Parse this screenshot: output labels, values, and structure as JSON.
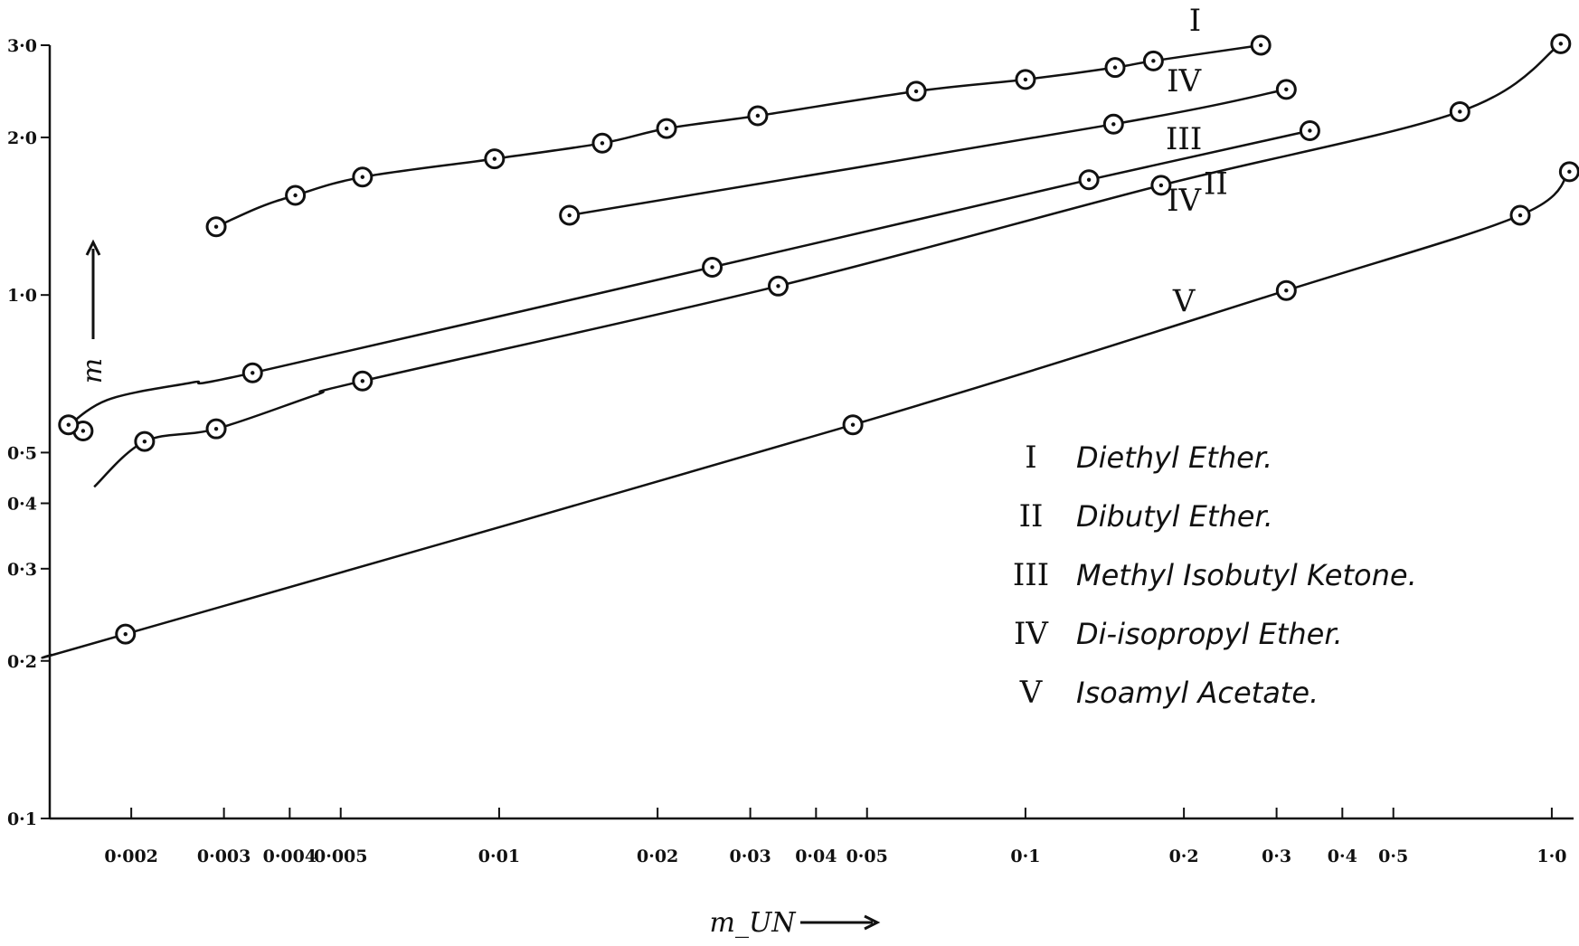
{
  "chart_data": {
    "type": "line",
    "x_scale": "log",
    "y_scale": "log",
    "xlim": [
      0.0014,
      1.1
    ],
    "ylim": [
      0.1,
      3.0
    ],
    "xlabel": "m_UN",
    "ylabel": "m",
    "x_ticks": [
      {
        "value": 0.002,
        "label": "0·002"
      },
      {
        "value": 0.003,
        "label": "0·003"
      },
      {
        "value": 0.004,
        "label": "0·004"
      },
      {
        "value": 0.005,
        "label": "0·005"
      },
      {
        "value": 0.01,
        "label": "0·01"
      },
      {
        "value": 0.02,
        "label": "0·02"
      },
      {
        "value": 0.03,
        "label": "0·03"
      },
      {
        "value": 0.04,
        "label": "0·04"
      },
      {
        "value": 0.05,
        "label": "0·05"
      },
      {
        "value": 0.1,
        "label": "0·1"
      },
      {
        "value": 0.2,
        "label": "0·2"
      },
      {
        "value": 0.3,
        "label": "0·3"
      },
      {
        "value": 0.4,
        "label": "0·4"
      },
      {
        "value": 0.5,
        "label": "0·5"
      },
      {
        "value": 1.0,
        "label": "1·0"
      }
    ],
    "y_ticks": [
      {
        "value": 0.1,
        "label": "0·1"
      },
      {
        "value": 0.2,
        "label": "0·2"
      },
      {
        "value": 0.3,
        "label": "0·3"
      },
      {
        "value": 0.4,
        "label": "0·4"
      },
      {
        "value": 0.5,
        "label": "0·5"
      },
      {
        "value": 1.0,
        "label": "1·0"
      },
      {
        "value": 2.0,
        "label": "2·0"
      },
      {
        "value": 3.0,
        "label": "3·0"
      }
    ],
    "series": [
      {
        "name": "Diethyl Ether.",
        "numeral": "I",
        "points": [
          [
            0.0029,
            1.35
          ],
          [
            0.0041,
            1.55
          ],
          [
            0.0055,
            1.68
          ],
          [
            0.0098,
            1.82
          ],
          [
            0.0157,
            1.95
          ],
          [
            0.0208,
            2.08
          ],
          [
            0.031,
            2.2
          ],
          [
            0.062,
            2.45
          ],
          [
            0.1,
            2.58
          ],
          [
            0.148,
            2.72
          ],
          [
            0.175,
            2.8
          ],
          [
            0.28,
            3.0
          ]
        ],
        "curve": [
          [
            0.0029,
            1.35
          ],
          [
            0.0035,
            1.47
          ],
          [
            0.0041,
            1.55
          ],
          [
            0.0055,
            1.68
          ],
          [
            0.0098,
            1.82
          ],
          [
            0.0157,
            1.95
          ],
          [
            0.0208,
            2.08
          ],
          [
            0.031,
            2.2
          ],
          [
            0.062,
            2.45
          ],
          [
            0.1,
            2.58
          ],
          [
            0.148,
            2.72
          ],
          [
            0.175,
            2.8
          ],
          [
            0.28,
            3.0
          ]
        ]
      },
      {
        "name": "Dibutyl Ether.",
        "numeral": "II",
        "points": [
          [
            0.00162,
            0.55
          ],
          [
            0.00212,
            0.525
          ],
          [
            0.0029,
            0.555
          ],
          [
            0.0055,
            0.685
          ],
          [
            0.0339,
            1.04
          ],
          [
            0.181,
            1.62
          ],
          [
            0.669,
            2.24
          ],
          [
            1.04,
            3.02
          ]
        ],
        "curve": [
          [
            0.0017,
            0.43
          ],
          [
            0.00212,
            0.525
          ],
          [
            0.0029,
            0.555
          ],
          [
            0.0045,
            0.645
          ],
          [
            0.0055,
            0.685
          ],
          [
            0.0339,
            1.04
          ],
          [
            0.181,
            1.62
          ],
          [
            0.669,
            2.24
          ],
          [
            1.04,
            3.02
          ]
        ]
      },
      {
        "name": "Methyl Isobutyl Ketone.",
        "numeral": "III",
        "points": [
          [
            0.00152,
            0.565
          ],
          [
            0.0034,
            0.71
          ],
          [
            0.0254,
            1.13
          ],
          [
            0.132,
            1.66
          ],
          [
            0.347,
            2.06
          ]
        ],
        "curve": [
          [
            0.00148,
            0.55
          ],
          [
            0.0018,
            0.63
          ],
          [
            0.0026,
            0.68
          ],
          [
            0.0034,
            0.71
          ],
          [
            0.0254,
            1.13
          ],
          [
            0.132,
            1.66
          ],
          [
            0.347,
            2.06
          ]
        ]
      },
      {
        "name": "Di-isopropyl Ether.",
        "numeral": "IV",
        "points": [
          [
            0.0136,
            1.42
          ],
          [
            0.147,
            2.12
          ],
          [
            0.313,
            2.47
          ]
        ],
        "curve": [
          [
            0.0136,
            1.42
          ],
          [
            0.147,
            2.12
          ],
          [
            0.313,
            2.47
          ]
        ]
      },
      {
        "name": "Isoamyl Acetate.",
        "numeral": "V",
        "points": [
          [
            0.00195,
            0.225
          ],
          [
            0.047,
            0.565
          ],
          [
            0.313,
            1.02
          ],
          [
            0.871,
            1.42
          ],
          [
            1.08,
            1.72
          ]
        ],
        "curve": [
          [
            0.0014,
            0.205
          ],
          [
            0.00195,
            0.225
          ],
          [
            0.047,
            0.565
          ],
          [
            0.313,
            1.02
          ],
          [
            0.871,
            1.42
          ],
          [
            1.08,
            1.72
          ]
        ]
      }
    ],
    "curve_labels": [
      {
        "text": "I",
        "x": 0.21,
        "y": 3.2
      },
      {
        "text": "IV",
        "x": 0.2,
        "y": 2.45
      },
      {
        "text": "III",
        "x": 0.2,
        "y": 1.9
      },
      {
        "text": "II",
        "x": 0.23,
        "y": 1.56
      },
      {
        "text": "IV",
        "x": 0.2,
        "y": 1.45
      },
      {
        "text": "V",
        "x": 0.2,
        "y": 0.93
      }
    ],
    "legend": {
      "placement": "lower-right",
      "entries": [
        {
          "key": "I",
          "text": "Diethyl Ether."
        },
        {
          "key": "II",
          "text": "Dibutyl Ether."
        },
        {
          "key": "III",
          "text": "Methyl Isobutyl Ketone."
        },
        {
          "key": "IV",
          "text": "Di-isopropyl Ether."
        },
        {
          "key": "V",
          "text": "Isoamyl Acetate."
        }
      ]
    },
    "grid": false
  }
}
